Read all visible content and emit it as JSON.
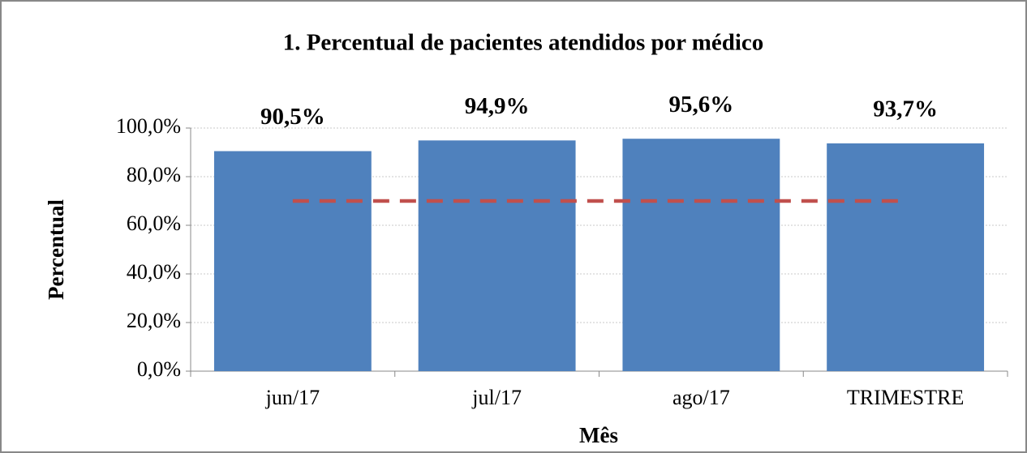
{
  "chart_data": {
    "type": "bar",
    "title": "1. Percentual de pacientes atendidos por médico",
    "x_label": "Mês",
    "y_label": "Percentual",
    "categories": [
      "jun/17",
      "jul/17",
      "ago/17",
      "TRIMESTRE"
    ],
    "series": [
      {
        "type": "bar",
        "color": "#4f81bd",
        "values": [
          90.5,
          94.9,
          95.6,
          93.7
        ],
        "value_labels": [
          "90,5%",
          "94,9%",
          "95,6%",
          "93,7%"
        ]
      },
      {
        "type": "line",
        "color": "#c0504d",
        "dashed": true,
        "values": [
          70,
          70,
          70,
          70
        ]
      }
    ],
    "ylim": [
      0,
      100
    ],
    "yticks": [
      {
        "value": 0,
        "label": "0,0%"
      },
      {
        "value": 20,
        "label": "20,0%"
      },
      {
        "value": 40,
        "label": "40,0%"
      },
      {
        "value": 60,
        "label": "60,0%"
      },
      {
        "value": 80,
        "label": "80,0%"
      },
      {
        "value": 100,
        "label": "100,0%"
      }
    ],
    "grid": true
  }
}
